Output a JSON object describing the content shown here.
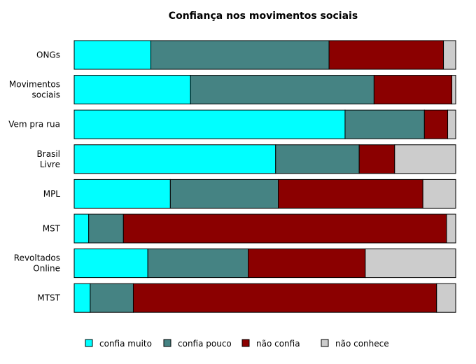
{
  "chart_data": {
    "type": "bar",
    "orientation": "horizontal",
    "stacked": true,
    "normalized_percent": true,
    "title": "Confiança nos movimentos sociais",
    "xlabel": "",
    "ylabel": "",
    "xlim": [
      0,
      100
    ],
    "grid": false,
    "legend_position": "bottom",
    "categories": [
      [
        "ONGs"
      ],
      [
        "Movimentos",
        "sociais"
      ],
      [
        "Vem pra rua"
      ],
      [
        "Brasil",
        "Livre"
      ],
      [
        "MPL"
      ],
      [
        "MST"
      ],
      [
        "Revoltados",
        "Online"
      ],
      [
        "MTST"
      ]
    ],
    "series": [
      {
        "name": "confia muito",
        "color": "#00FFFF",
        "values": [
          20.1,
          30.5,
          71.0,
          52.8,
          25.2,
          3.8,
          19.3,
          4.2
        ]
      },
      {
        "name": "confia pouco",
        "color": "#458383",
        "values": [
          46.7,
          48.1,
          20.8,
          21.9,
          28.3,
          9.1,
          26.3,
          11.3
        ]
      },
      {
        "name": "não confia",
        "color": "#8B0000",
        "values": [
          30.0,
          20.4,
          6.1,
          9.3,
          37.9,
          84.7,
          30.7,
          79.5
        ]
      },
      {
        "name": "não conhece",
        "color": "#CCCCCC",
        "values": [
          3.2,
          1.0,
          2.1,
          16.0,
          8.6,
          2.4,
          23.7,
          5.0
        ]
      }
    ]
  }
}
